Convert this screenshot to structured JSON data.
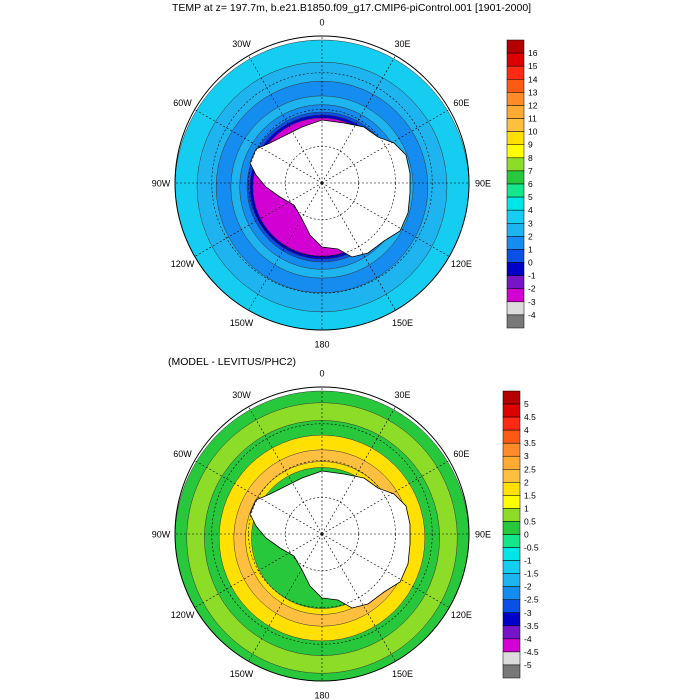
{
  "top_map": {
    "title": "TEMP at z= 197.7m, b.e21.B1850.f09_g17.CMIP6-piControl.001 [1901-2000]",
    "lon_labels": [
      "0",
      "30E",
      "60E",
      "90E",
      "120E",
      "150E",
      "180",
      "150W",
      "120W",
      "90W",
      "60W",
      "30W"
    ],
    "colorbar": {
      "labels": [
        "16",
        "15",
        "14",
        "13",
        "12",
        "11",
        "10",
        "9",
        "8",
        "7",
        "6",
        "5",
        "4",
        "3",
        "2",
        "1",
        "0",
        "-1",
        "-2",
        "-3",
        "-4"
      ],
      "colors": [
        "#b40000",
        "#dc0000",
        "#ff2a14",
        "#ff5a14",
        "#ff8c28",
        "#ffaa32",
        "#ffc040",
        "#ffe000",
        "#ffff00",
        "#8cdc28",
        "#28c83c",
        "#14e68c",
        "#00e6e6",
        "#14cdf0",
        "#1eb4f0",
        "#148cf0",
        "#0a50e6",
        "#0000c8",
        "#7814c8",
        "#d200d2",
        "#dcdcdc",
        "#787878"
      ]
    },
    "field": [
      {
        "r": 1.0,
        "color": "#14cdf0"
      },
      {
        "r": 0.85,
        "color": "#1eb4f0"
      },
      {
        "r": 0.72,
        "color": "#148cf0"
      },
      {
        "r": 0.62,
        "color": "#1eb4f0"
      },
      {
        "r": 0.56,
        "color": "#148cf0"
      },
      {
        "r": 0.51,
        "color": "#0a50e6"
      },
      {
        "r": 0.49,
        "color": "#0000c8"
      },
      {
        "r": 0.47,
        "color": "#d200d2"
      }
    ]
  },
  "bottom_map": {
    "title": "(MODEL - LEVITUS/PHC2)",
    "lon_labels": [
      "0",
      "30E",
      "60E",
      "90E",
      "120E",
      "150E",
      "180",
      "150W",
      "120W",
      "90W",
      "60W",
      "30W"
    ],
    "colorbar": {
      "labels": [
        "5",
        "4.5",
        "4",
        "3.5",
        "3",
        "2.5",
        "2",
        "1.5",
        "1",
        "0.5",
        "0",
        "-0.5",
        "-1",
        "-1.5",
        "-2",
        "-2.5",
        "-3",
        "-3.5",
        "-4",
        "-4.5",
        "-5"
      ],
      "colors": [
        "#b40000",
        "#dc0000",
        "#ff2a14",
        "#ff5a14",
        "#ff8c28",
        "#ffaa32",
        "#ffc040",
        "#ffe000",
        "#ffff00",
        "#8cdc28",
        "#28c83c",
        "#14e68c",
        "#00e6e6",
        "#14cdf0",
        "#1eb4f0",
        "#148cf0",
        "#0a50e6",
        "#0000c8",
        "#7814c8",
        "#d200d2",
        "#dcdcdc",
        "#787878"
      ]
    },
    "field": [
      {
        "r": 1.0,
        "color": "#28c83c"
      },
      {
        "r": 0.92,
        "color": "#8cdc28"
      },
      {
        "r": 0.8,
        "color": "#28c83c"
      },
      {
        "r": 0.7,
        "color": "#ffe000"
      },
      {
        "r": 0.6,
        "color": "#ffc040"
      },
      {
        "r": 0.52,
        "color": "#ffe000"
      },
      {
        "r": 0.48,
        "color": "#28c83c"
      }
    ]
  }
}
